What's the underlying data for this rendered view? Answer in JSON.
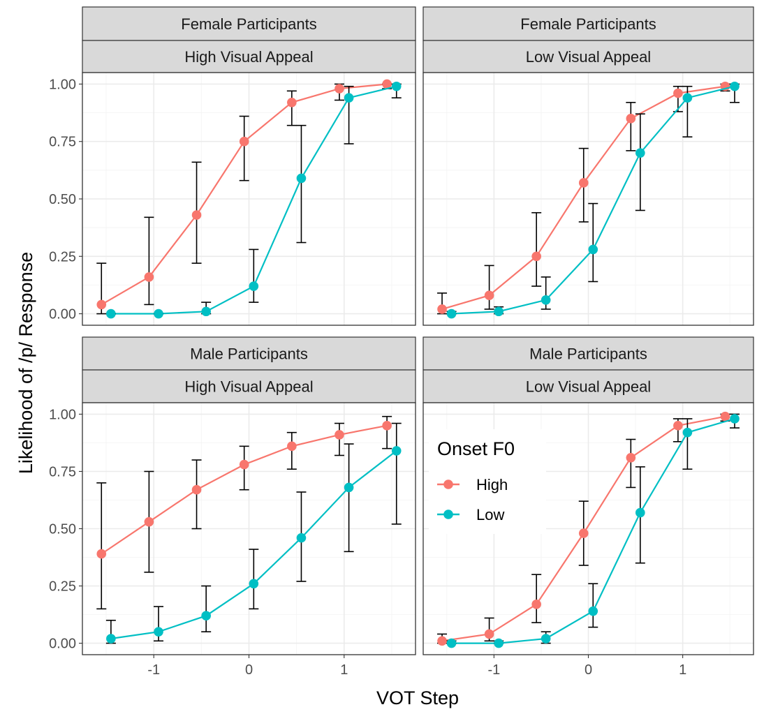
{
  "colors": {
    "high": "#F8766D",
    "low": "#00BFC4"
  },
  "chart_data": {
    "type": "line",
    "xlabel": "VOT Step",
    "ylabel": "Likelihood of /p/ Response",
    "xlim": [
      -1.75,
      1.75
    ],
    "ylim": [
      -0.05,
      1.05
    ],
    "x_ticks": [
      -1,
      0,
      1
    ],
    "x_tick_labels": [
      "-1",
      "0",
      "1"
    ],
    "y_ticks": [
      0,
      0.25,
      0.5,
      0.75,
      1
    ],
    "y_tick_labels": [
      "0.00",
      "0.25",
      "0.50",
      "0.75",
      "1.00"
    ],
    "legend": {
      "title": "Onset F0",
      "position": "inside bottom-right panel, upper-left",
      "entries": [
        "High",
        "Low"
      ]
    },
    "x_high": [
      -1.55,
      -1.05,
      -0.55,
      -0.05,
      0.45,
      0.95,
      1.45
    ],
    "x_low": [
      -1.45,
      -0.95,
      -0.45,
      0.05,
      0.55,
      1.05,
      1.55
    ],
    "panels": [
      {
        "row_label": "Female Participants",
        "col_label": "High Visual Appeal",
        "series": [
          {
            "name": "High",
            "values": [
              0.04,
              0.16,
              0.43,
              0.75,
              0.92,
              0.98,
              1.0
            ],
            "lower": [
              0.0,
              0.04,
              0.22,
              0.58,
              0.82,
              0.93,
              0.98
            ],
            "upper": [
              0.22,
              0.42,
              0.66,
              0.86,
              0.97,
              1.0,
              1.0
            ]
          },
          {
            "name": "Low",
            "values": [
              0.0,
              0.0,
              0.01,
              0.12,
              0.59,
              0.94,
              0.99
            ],
            "lower": [
              0.0,
              0.0,
              0.0,
              0.05,
              0.31,
              0.74,
              0.94
            ],
            "upper": [
              0.0,
              0.0,
              0.05,
              0.28,
              0.82,
              0.99,
              1.0
            ]
          }
        ]
      },
      {
        "row_label": "Female Participants",
        "col_label": "Low Visual Appeal",
        "series": [
          {
            "name": "High",
            "values": [
              0.02,
              0.08,
              0.25,
              0.57,
              0.85,
              0.96,
              0.99
            ],
            "lower": [
              0.0,
              0.02,
              0.12,
              0.4,
              0.71,
              0.88,
              0.97
            ],
            "upper": [
              0.09,
              0.21,
              0.44,
              0.72,
              0.92,
              0.99,
              1.0
            ]
          },
          {
            "name": "Low",
            "values": [
              0.0,
              0.01,
              0.06,
              0.28,
              0.7,
              0.94,
              0.99
            ],
            "lower": [
              0.0,
              0.0,
              0.02,
              0.14,
              0.45,
              0.77,
              0.92
            ],
            "upper": [
              0.01,
              0.03,
              0.16,
              0.48,
              0.87,
              0.99,
              1.0
            ]
          }
        ]
      },
      {
        "row_label": "Male Participants",
        "col_label": "High Visual Appeal",
        "series": [
          {
            "name": "High",
            "values": [
              0.39,
              0.53,
              0.67,
              0.78,
              0.86,
              0.91,
              0.95
            ],
            "lower": [
              0.15,
              0.31,
              0.5,
              0.67,
              0.76,
              0.82,
              0.85
            ],
            "upper": [
              0.7,
              0.75,
              0.8,
              0.86,
              0.92,
              0.96,
              0.99
            ]
          },
          {
            "name": "Low",
            "values": [
              0.02,
              0.05,
              0.12,
              0.26,
              0.46,
              0.68,
              0.84
            ],
            "lower": [
              0.0,
              0.01,
              0.05,
              0.15,
              0.27,
              0.4,
              0.52
            ],
            "upper": [
              0.1,
              0.16,
              0.25,
              0.41,
              0.66,
              0.87,
              0.96
            ]
          }
        ]
      },
      {
        "row_label": "Male Participants",
        "col_label": "Low Visual Appeal",
        "series": [
          {
            "name": "High",
            "values": [
              0.01,
              0.04,
              0.17,
              0.48,
              0.81,
              0.95,
              0.99
            ],
            "lower": [
              0.0,
              0.01,
              0.09,
              0.34,
              0.68,
              0.88,
              0.97
            ],
            "upper": [
              0.04,
              0.11,
              0.3,
              0.62,
              0.89,
              0.98,
              1.0
            ]
          },
          {
            "name": "Low",
            "values": [
              0.0,
              0.0,
              0.02,
              0.14,
              0.57,
              0.92,
              0.98
            ],
            "lower": [
              0.0,
              0.0,
              0.0,
              0.07,
              0.35,
              0.76,
              0.94
            ],
            "upper": [
              0.01,
              0.01,
              0.05,
              0.26,
              0.77,
              0.98,
              1.0
            ]
          }
        ]
      }
    ]
  }
}
